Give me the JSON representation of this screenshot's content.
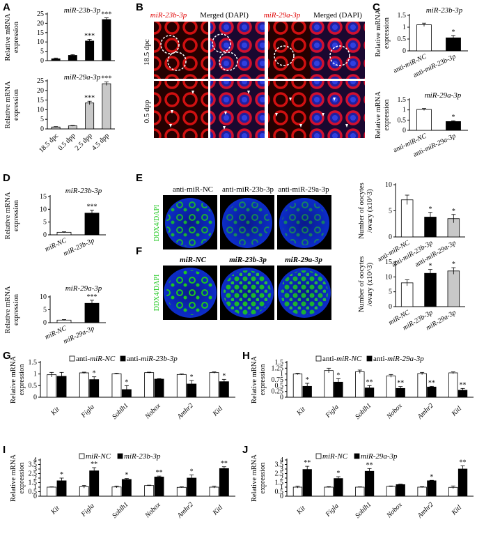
{
  "panel_letters": {
    "A": "A",
    "B": "B",
    "C": "C",
    "D": "D",
    "E": "E",
    "F": "F",
    "G": "G",
    "H": "H",
    "I": "I",
    "J": "J"
  },
  "colors": {
    "black_bar": "#000000",
    "white_bar": "#ffffff",
    "gray_bar": "#c8c8c8",
    "red": "#e00000",
    "blue": "#1a3cff",
    "green": "#1ec81e"
  },
  "micrograph_B": {
    "col_labels": [
      "miR-23b-3p",
      "Merged (DAPI)",
      "miR-29a-3p",
      "Merged (DAPI)"
    ],
    "row_labels": [
      "18.5 dpc",
      "0.5 dpp"
    ]
  },
  "micrograph_E": {
    "stain": "DDX4/DAPI",
    "labels": [
      "anti-miR-NC",
      "anti-miR-23b-3p",
      "anti-miR-29a-3p"
    ]
  },
  "micrograph_F": {
    "stain": "DDX4/DAPI",
    "labels": [
      "miR-NC",
      "miR-23b-3p",
      "miR-29a-3p"
    ]
  },
  "chart_data": [
    {
      "id": "A1",
      "type": "bar",
      "title": "miR-23b-3p",
      "ylabel": "Relative mRNA expression",
      "ylim": [
        0,
        25
      ],
      "ticks": [
        0,
        5,
        10,
        15,
        20,
        25
      ],
      "categories": [
        "18.5 dpc",
        "0.5 dpp",
        "2.5 dpp",
        "4.5 dpp"
      ],
      "values": [
        1,
        2.8,
        10.5,
        22
      ],
      "errors": [
        0.4,
        0.4,
        0.9,
        0.9
      ],
      "stars": [
        "",
        "",
        "***",
        "***"
      ],
      "bar_color": "#000000",
      "show_xlabels": false
    },
    {
      "id": "A2",
      "type": "bar",
      "title": "miR-29a-3p",
      "ylabel": "Relative mRNA expression",
      "ylim": [
        0,
        25
      ],
      "ticks": [
        0,
        5,
        10,
        15,
        20,
        25
      ],
      "categories": [
        "18.5 dpc",
        "0.5 dpp",
        "2.5 dpp",
        "4.5 dpp"
      ],
      "values": [
        1,
        1.6,
        13.5,
        23.5
      ],
      "errors": [
        0.2,
        0.2,
        0.9,
        0.9
      ],
      "stars": [
        "",
        "",
        "***",
        "***"
      ],
      "bar_color": "#c8c8c8",
      "show_xlabels": true
    },
    {
      "id": "C1",
      "type": "bar",
      "title": "miR-23b-3p",
      "ylabel": "Relative mRNA expression",
      "ylim": [
        0,
        1.5
      ],
      "ticks": [
        0,
        0.5,
        1,
        1.5
      ],
      "categories": [
        "anti-miR-NC",
        "anti-miR-23b-3p"
      ],
      "values": [
        1.1,
        0.55
      ],
      "errors": [
        0.07,
        0.1
      ],
      "stars": [
        "",
        "*"
      ],
      "bar_colors": [
        "#ffffff",
        "#000000"
      ],
      "show_xlabels": true
    },
    {
      "id": "C2",
      "type": "bar",
      "title": "miR-29a-3p",
      "ylabel": "Relative mRNA expression",
      "ylim": [
        0,
        1.5
      ],
      "ticks": [
        0,
        0.5,
        1,
        1.5
      ],
      "categories": [
        "anti-miR-NC",
        "anti-miR-29a-3p"
      ],
      "values": [
        1.02,
        0.43
      ],
      "errors": [
        0.05,
        0.04
      ],
      "stars": [
        "",
        "*"
      ],
      "bar_colors": [
        "#ffffff",
        "#000000"
      ],
      "show_xlabels": true
    },
    {
      "id": "D1",
      "type": "bar",
      "title": "miR-23b-3p",
      "ylabel": "Relative mRNA expression",
      "ylim": [
        0,
        15
      ],
      "ticks": [
        0,
        5,
        10,
        15
      ],
      "categories": [
        "miR-NC",
        "miR-23b-3p"
      ],
      "values": [
        1,
        8.5
      ],
      "errors": [
        0.2,
        1.2
      ],
      "stars": [
        "",
        "***"
      ],
      "bar_colors": [
        "#ffffff",
        "#000000"
      ],
      "show_xlabels": true
    },
    {
      "id": "D2",
      "type": "bar",
      "title": "miR-29a-3p",
      "ylabel": "Relative mRNA expression",
      "ylim": [
        0,
        10
      ],
      "ticks": [
        0,
        5,
        10
      ],
      "categories": [
        "miR-NC",
        "miR-29a-3p"
      ],
      "values": [
        1,
        7.5
      ],
      "errors": [
        0.2,
        1.2
      ],
      "stars": [
        "",
        "***"
      ],
      "bar_colors": [
        "#ffffff",
        "#000000"
      ],
      "show_xlabels": true
    },
    {
      "id": "E",
      "type": "bar",
      "title": "",
      "ylabel": "Number of oocytes /ovary (x10^3)",
      "ylim": [
        0,
        10
      ],
      "ticks": [
        0,
        5,
        10
      ],
      "categories": [
        "anti-miR-NC",
        "anti-miR-23b-3p",
        "anti-miR-29a-3p"
      ],
      "values": [
        7.1,
        3.8,
        3.5
      ],
      "errors": [
        0.9,
        0.9,
        0.8
      ],
      "stars": [
        "",
        "*",
        "*"
      ],
      "bar_colors": [
        "#ffffff",
        "#000000",
        "#c8c8c8"
      ],
      "show_xlabels": true
    },
    {
      "id": "F",
      "type": "bar",
      "title": "",
      "ylabel": "Number of oocytes /ovary (x10^3)",
      "ylim": [
        0,
        15
      ],
      "ticks": [
        0,
        5,
        10,
        15
      ],
      "categories": [
        "miR-NC",
        "miR-23b-3p",
        "miR-29a-3p"
      ],
      "values": [
        8,
        11.2,
        12
      ],
      "errors": [
        1,
        1.3,
        1.1
      ],
      "stars": [
        "",
        "*",
        "*"
      ],
      "bar_colors": [
        "#ffffff",
        "#000000",
        "#c8c8c8"
      ],
      "show_xlabels": true
    },
    {
      "id": "G",
      "type": "bar",
      "title": "",
      "ylabel": "Relative mRNA expression",
      "ylim": [
        0,
        1.5
      ],
      "ticks": [
        0,
        0.5,
        1,
        1.5
      ],
      "categories": [
        "Kit",
        "Figla",
        "Sohlh1",
        "Nobox",
        "Amhr2",
        "Kitl"
      ],
      "series": [
        {
          "name": "anti-miR-NC",
          "values": [
            0.97,
            1.05,
            1.01,
            1.06,
            0.98,
            1.06
          ],
          "errors": [
            0.1,
            0.03,
            0.02,
            0.02,
            0.02,
            0.03
          ],
          "color": "#ffffff"
        },
        {
          "name": "anti-miR-23b-3p",
          "values": [
            0.9,
            0.76,
            0.33,
            0.78,
            0.57,
            0.67
          ],
          "errors": [
            0.17,
            0.12,
            0.17,
            0.02,
            0.15,
            0.1
          ],
          "color": "#000000"
        }
      ],
      "stars": [
        "",
        "*",
        "*",
        "",
        "*",
        "*"
      ]
    },
    {
      "id": "H",
      "type": "bar",
      "title": "",
      "ylabel": "Relative mRNA expression",
      "ylim": [
        0,
        1.5
      ],
      "ticks": [
        0,
        0.25,
        0.5,
        0.75,
        1,
        1.25,
        1.5
      ],
      "categories": [
        "Kit",
        "Figla",
        "Sohlh1",
        "Nobox",
        "Amhr2",
        "Kitl"
      ],
      "series": [
        {
          "name": "anti-miR-NC",
          "values": [
            1,
            1.15,
            1.1,
            0.92,
            1.02,
            1.05
          ],
          "errors": [
            0.03,
            0.1,
            0.07,
            0.06,
            0.05,
            0.04
          ],
          "color": "#ffffff"
        },
        {
          "name": "anti-miR-29a-3p",
          "values": [
            0.47,
            0.65,
            0.4,
            0.38,
            0.44,
            0.3
          ],
          "errors": [
            0.13,
            0.15,
            0.1,
            0.08,
            0.03,
            0.08
          ],
          "color": "#000000"
        }
      ],
      "stars": [
        "*",
        "*",
        "**",
        "**",
        "**",
        "**"
      ]
    },
    {
      "id": "I",
      "type": "bar",
      "title": "",
      "ylabel": "Relative mRNA expression",
      "ylim": [
        0,
        4
      ],
      "ticks": [
        0,
        0.5,
        1,
        1.5,
        2,
        2.5,
        3,
        3.5,
        4
      ],
      "categories": [
        "Kit",
        "Figla",
        "Sohlh1",
        "Nobox",
        "Amhr2",
        "Kitl"
      ],
      "series": [
        {
          "name": "miR-NC",
          "values": [
            1,
            1.05,
            1.02,
            1.18,
            0.98,
            1
          ],
          "errors": [
            0.03,
            0.15,
            0.1,
            0.04,
            0.05,
            0.1
          ],
          "color": "#ffffff"
        },
        {
          "name": "miR-23b-3p",
          "values": [
            1.7,
            2.8,
            1.85,
            2.12,
            2,
            3.05
          ],
          "errors": [
            0.3,
            0.35,
            0.1,
            0.1,
            0.35,
            0.2
          ],
          "color": "#000000"
        }
      ],
      "stars": [
        "*",
        "**",
        "*",
        "**",
        "*",
        "**"
      ]
    },
    {
      "id": "J",
      "type": "bar",
      "title": "",
      "ylabel": "Relative mRNA expression",
      "ylim": [
        0,
        4
      ],
      "ticks": [
        0,
        0.5,
        1,
        1.5,
        2,
        2.5,
        3,
        3.5,
        4
      ],
      "categories": [
        "Kit",
        "Figla",
        "Sohlh1",
        "Nobox",
        "Amhr2",
        "Kitl"
      ],
      "series": [
        {
          "name": "miR-NC",
          "values": [
            1,
            1,
            1,
            1.08,
            1,
            0.98
          ],
          "errors": [
            0.1,
            0.05,
            0.03,
            0.05,
            0.05,
            0.15
          ],
          "color": "#ffffff"
        },
        {
          "name": "miR-29a-3p",
          "values": [
            2.95,
            1.95,
            2.75,
            1.28,
            1.7,
            3
          ],
          "errors": [
            0.35,
            0.2,
            0.3,
            0.05,
            0.05,
            0.35
          ],
          "color": "#000000"
        }
      ],
      "stars": [
        "**",
        "*",
        "**",
        "",
        "*",
        "**"
      ]
    }
  ]
}
